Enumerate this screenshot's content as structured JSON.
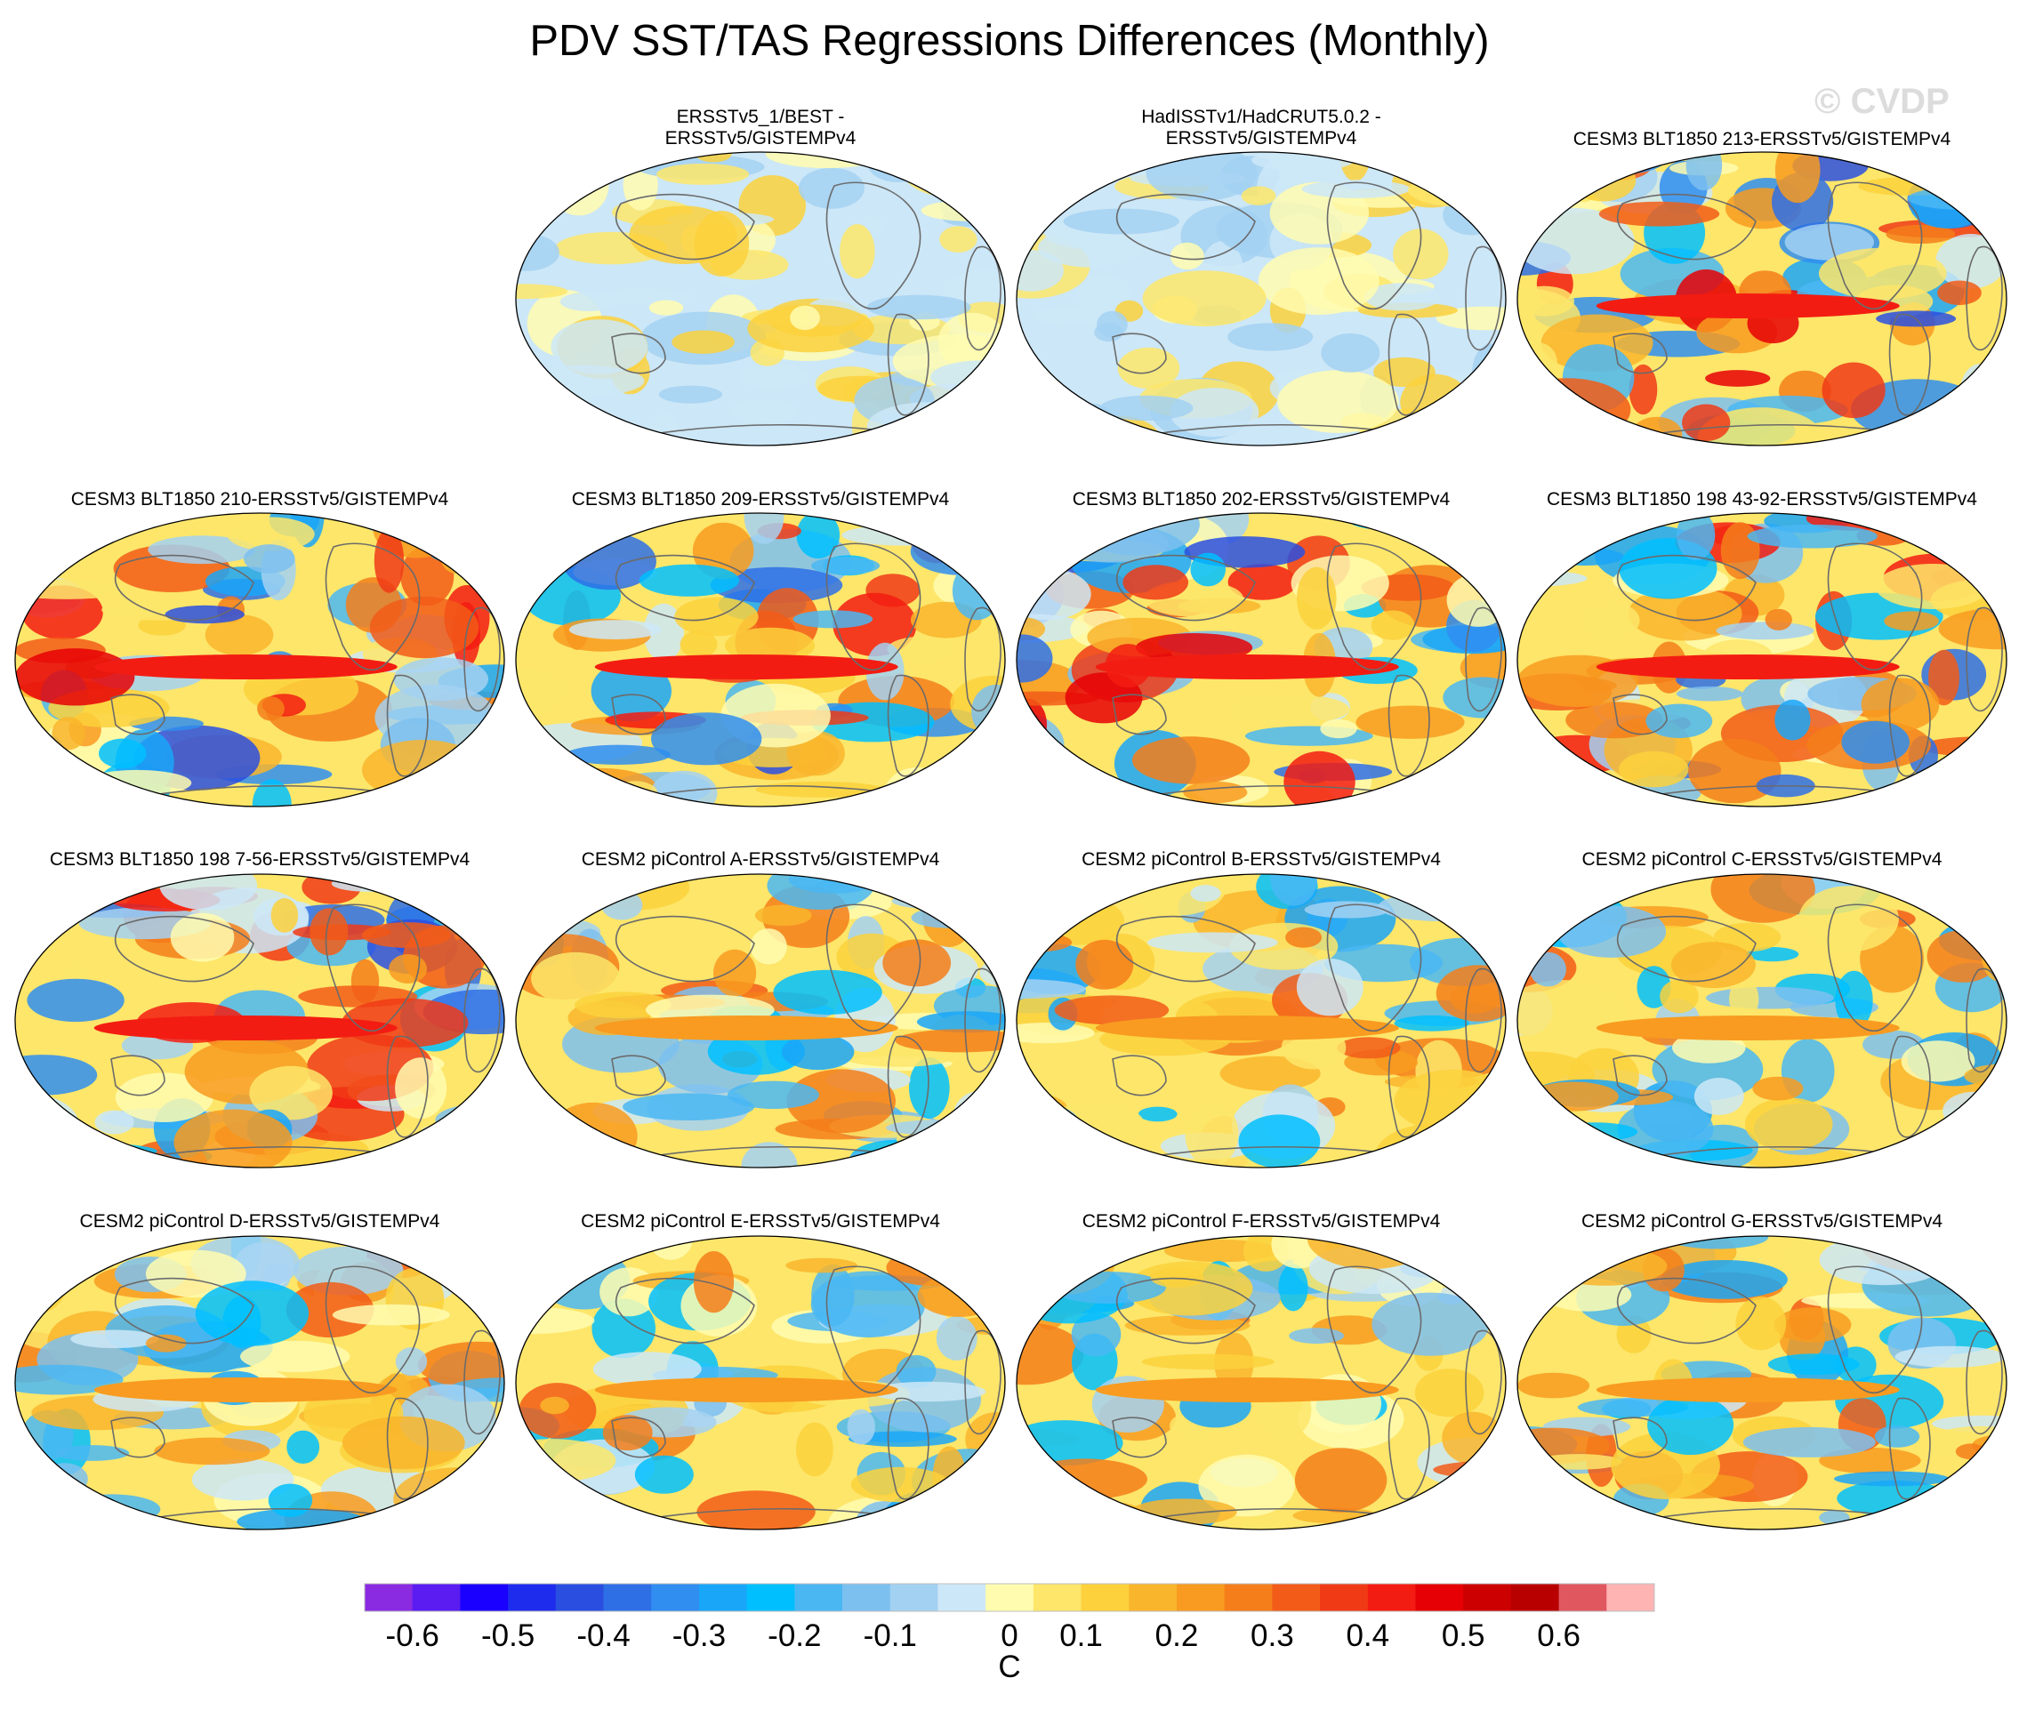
{
  "title": "PDV SST/TAS Regressions Differences (Monthly)",
  "watermark": "© CVDP",
  "colorbar": {
    "unit": "C",
    "labels": [
      "-0.6",
      "-0.5",
      "-0.4",
      "-0.3",
      "-0.2",
      "-0.1",
      "0",
      "0.1",
      "0.2",
      "0.3",
      "0.4",
      "0.5",
      "0.6"
    ],
    "colors": [
      "#8a2be2",
      "#5a1cf0",
      "#1a00ff",
      "#1e2cee",
      "#2a4fe0",
      "#2e6fe6",
      "#2f8ef0",
      "#1aa6f8",
      "#00bfff",
      "#4ab7f3",
      "#7cc0f0",
      "#a3d1f2",
      "#cce7f7",
      "#fffcb0",
      "#fde66a",
      "#fcd13c",
      "#f9b52c",
      "#f89b20",
      "#f57e1a",
      "#f25c18",
      "#f03a16",
      "#f31c12",
      "#e60006",
      "#cc0000",
      "#b80000",
      "#e0575f",
      "#ffb4b4"
    ]
  },
  "panels": [
    {
      "id": "p1",
      "title": "ERSSTv5_1/BEST -\nERSSTv5/GISTEMPv4"
    },
    {
      "id": "p2",
      "title": "HadISSTv1/HadCRUT5.0.2 -\nERSSTv5/GISTEMPv4"
    },
    {
      "id": "p3",
      "title": "CESM3 BLT1850 213-ERSSTv5/GISTEMPv4"
    },
    {
      "id": "p4",
      "title": "CESM3 BLT1850 210-ERSSTv5/GISTEMPv4"
    },
    {
      "id": "p5",
      "title": "CESM3 BLT1850 209-ERSSTv5/GISTEMPv4"
    },
    {
      "id": "p6",
      "title": "CESM3 BLT1850 202-ERSSTv5/GISTEMPv4"
    },
    {
      "id": "p7",
      "title": "CESM3 BLT1850 198 43-92-ERSSTv5/GISTEMPv4"
    },
    {
      "id": "p8",
      "title": "CESM3 BLT1850 198 7-56-ERSSTv5/GISTEMPv4"
    },
    {
      "id": "p9",
      "title": "CESM2 piControl A-ERSSTv5/GISTEMPv4"
    },
    {
      "id": "p10",
      "title": "CESM2 piControl B-ERSSTv5/GISTEMPv4"
    },
    {
      "id": "p11",
      "title": "CESM2 piControl C-ERSSTv5/GISTEMPv4"
    },
    {
      "id": "p12",
      "title": "CESM2 piControl D-ERSSTv5/GISTEMPv4"
    },
    {
      "id": "p13",
      "title": "CESM2 piControl E-ERSSTv5/GISTEMPv4"
    },
    {
      "id": "p14",
      "title": "CESM2 piControl F-ERSSTv5/GISTEMPv4"
    },
    {
      "id": "p15",
      "title": "CESM2 piControl G-ERSSTv5/GISTEMPv4"
    }
  ]
}
